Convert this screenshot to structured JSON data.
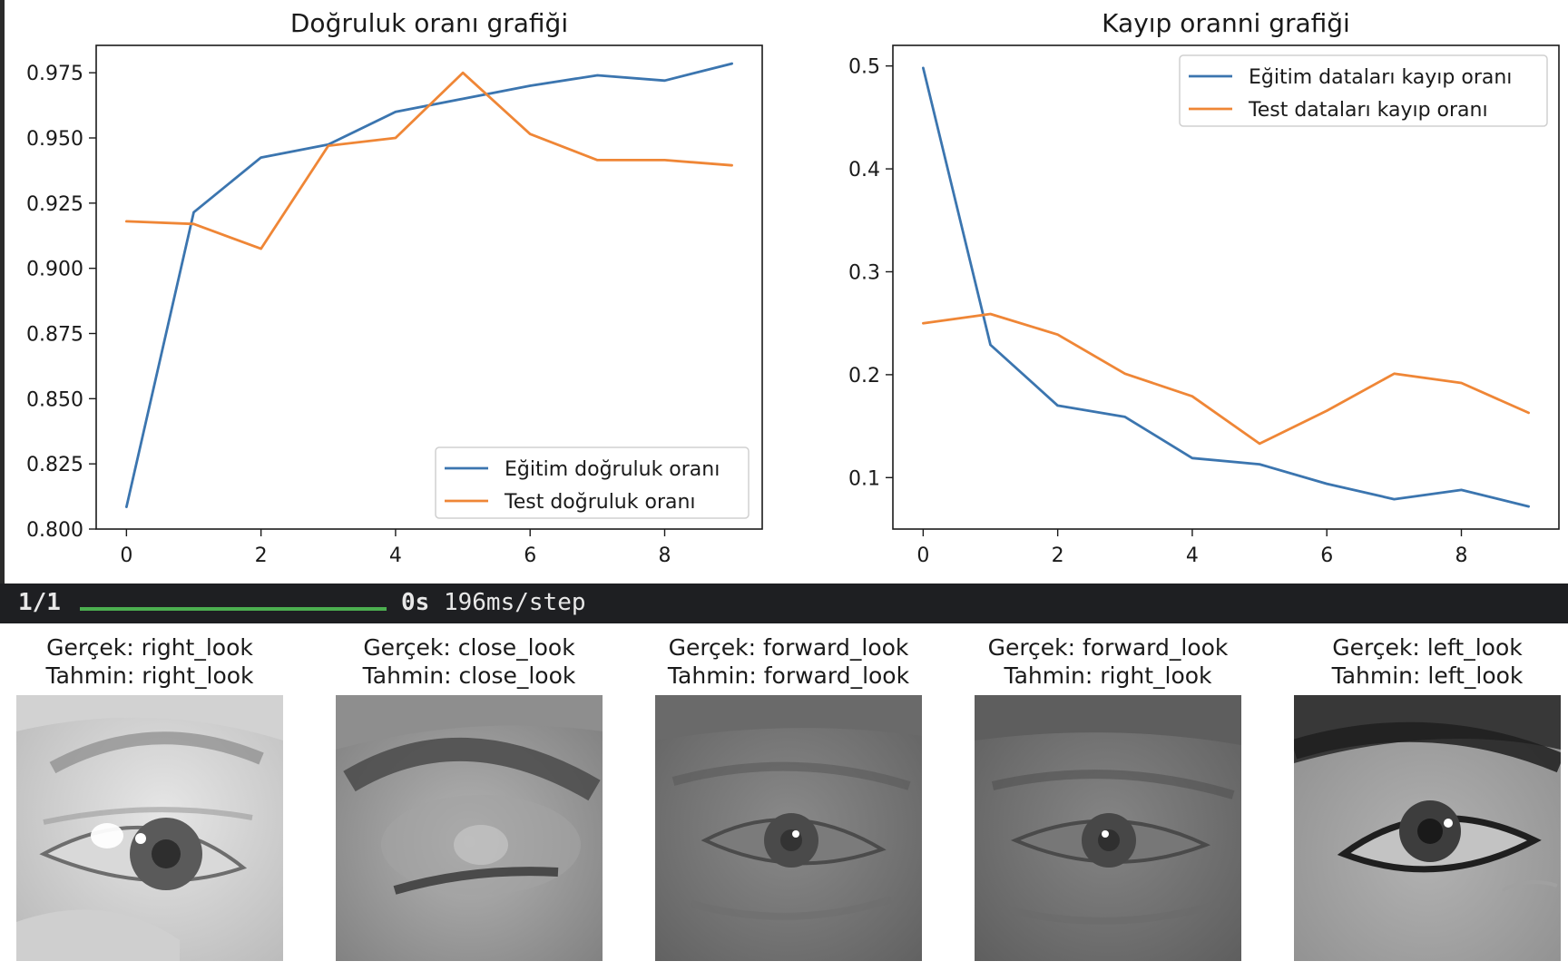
{
  "chart_data": [
    {
      "type": "line",
      "title": "Doğruluk oranı grafiği",
      "xlabel": "",
      "ylabel": "",
      "x": [
        0,
        1,
        2,
        3,
        4,
        5,
        6,
        7,
        8,
        9
      ],
      "xticks": [
        0,
        2,
        4,
        6,
        8
      ],
      "yticks": [
        0.8,
        0.825,
        0.85,
        0.875,
        0.9,
        0.925,
        0.95,
        0.975
      ],
      "xlim": [
        -0.45,
        9.45
      ],
      "ylim": [
        0.8,
        0.9855
      ],
      "grid": false,
      "legend_position": "lower-right",
      "series": [
        {
          "name": "Eğitim doğruluk oranı",
          "color": "#3b75af",
          "values": [
            0.8085,
            0.9215,
            0.9425,
            0.9475,
            0.96,
            0.965,
            0.97,
            0.974,
            0.972,
            0.9785
          ]
        },
        {
          "name": "Test doğruluk oranı",
          "color": "#ef8636",
          "values": [
            0.918,
            0.917,
            0.9075,
            0.947,
            0.95,
            0.975,
            0.9515,
            0.9415,
            0.9415,
            0.9395
          ]
        }
      ]
    },
    {
      "type": "line",
      "title": "Kayıp oranni grafiği",
      "xlabel": "",
      "ylabel": "",
      "x": [
        0,
        1,
        2,
        3,
        4,
        5,
        6,
        7,
        8,
        9
      ],
      "xticks": [
        0,
        2,
        4,
        6,
        8
      ],
      "yticks": [
        0.1,
        0.2,
        0.3,
        0.4,
        0.5
      ],
      "xlim": [
        -0.45,
        9.45
      ],
      "ylim": [
        0.05,
        0.52
      ],
      "grid": false,
      "legend_position": "upper-right",
      "series": [
        {
          "name": "Eğitim dataları kayıp oranı",
          "color": "#3b75af",
          "values": [
            0.498,
            0.229,
            0.17,
            0.159,
            0.119,
            0.113,
            0.094,
            0.079,
            0.088,
            0.072
          ]
        },
        {
          "name": "Test dataları kayıp oranı",
          "color": "#ef8636",
          "values": [
            0.25,
            0.259,
            0.239,
            0.201,
            0.179,
            0.133,
            0.165,
            0.201,
            0.192,
            0.163
          ]
        }
      ]
    }
  ],
  "progress": {
    "count": "1/1",
    "fraction": 1.0,
    "time": "0s",
    "rate": "196ms/step"
  },
  "samples": [
    {
      "true_label": "Gerçek: right_look",
      "pred_label": "Tahmin: right_look",
      "brightness": "bright"
    },
    {
      "true_label": "Gerçek: close_look",
      "pred_label": "Tahmin: close_look",
      "brightness": "medium"
    },
    {
      "true_label": "Gerçek: forward_look",
      "pred_label": "Tahmin: forward_look",
      "brightness": "dark"
    },
    {
      "true_label": "Gerçek: forward_look",
      "pred_label": "Tahmin: right_look",
      "brightness": "dark"
    },
    {
      "true_label": "Gerçek: left_look",
      "pred_label": "Tahmin: left_look",
      "brightness": "medium"
    }
  ]
}
